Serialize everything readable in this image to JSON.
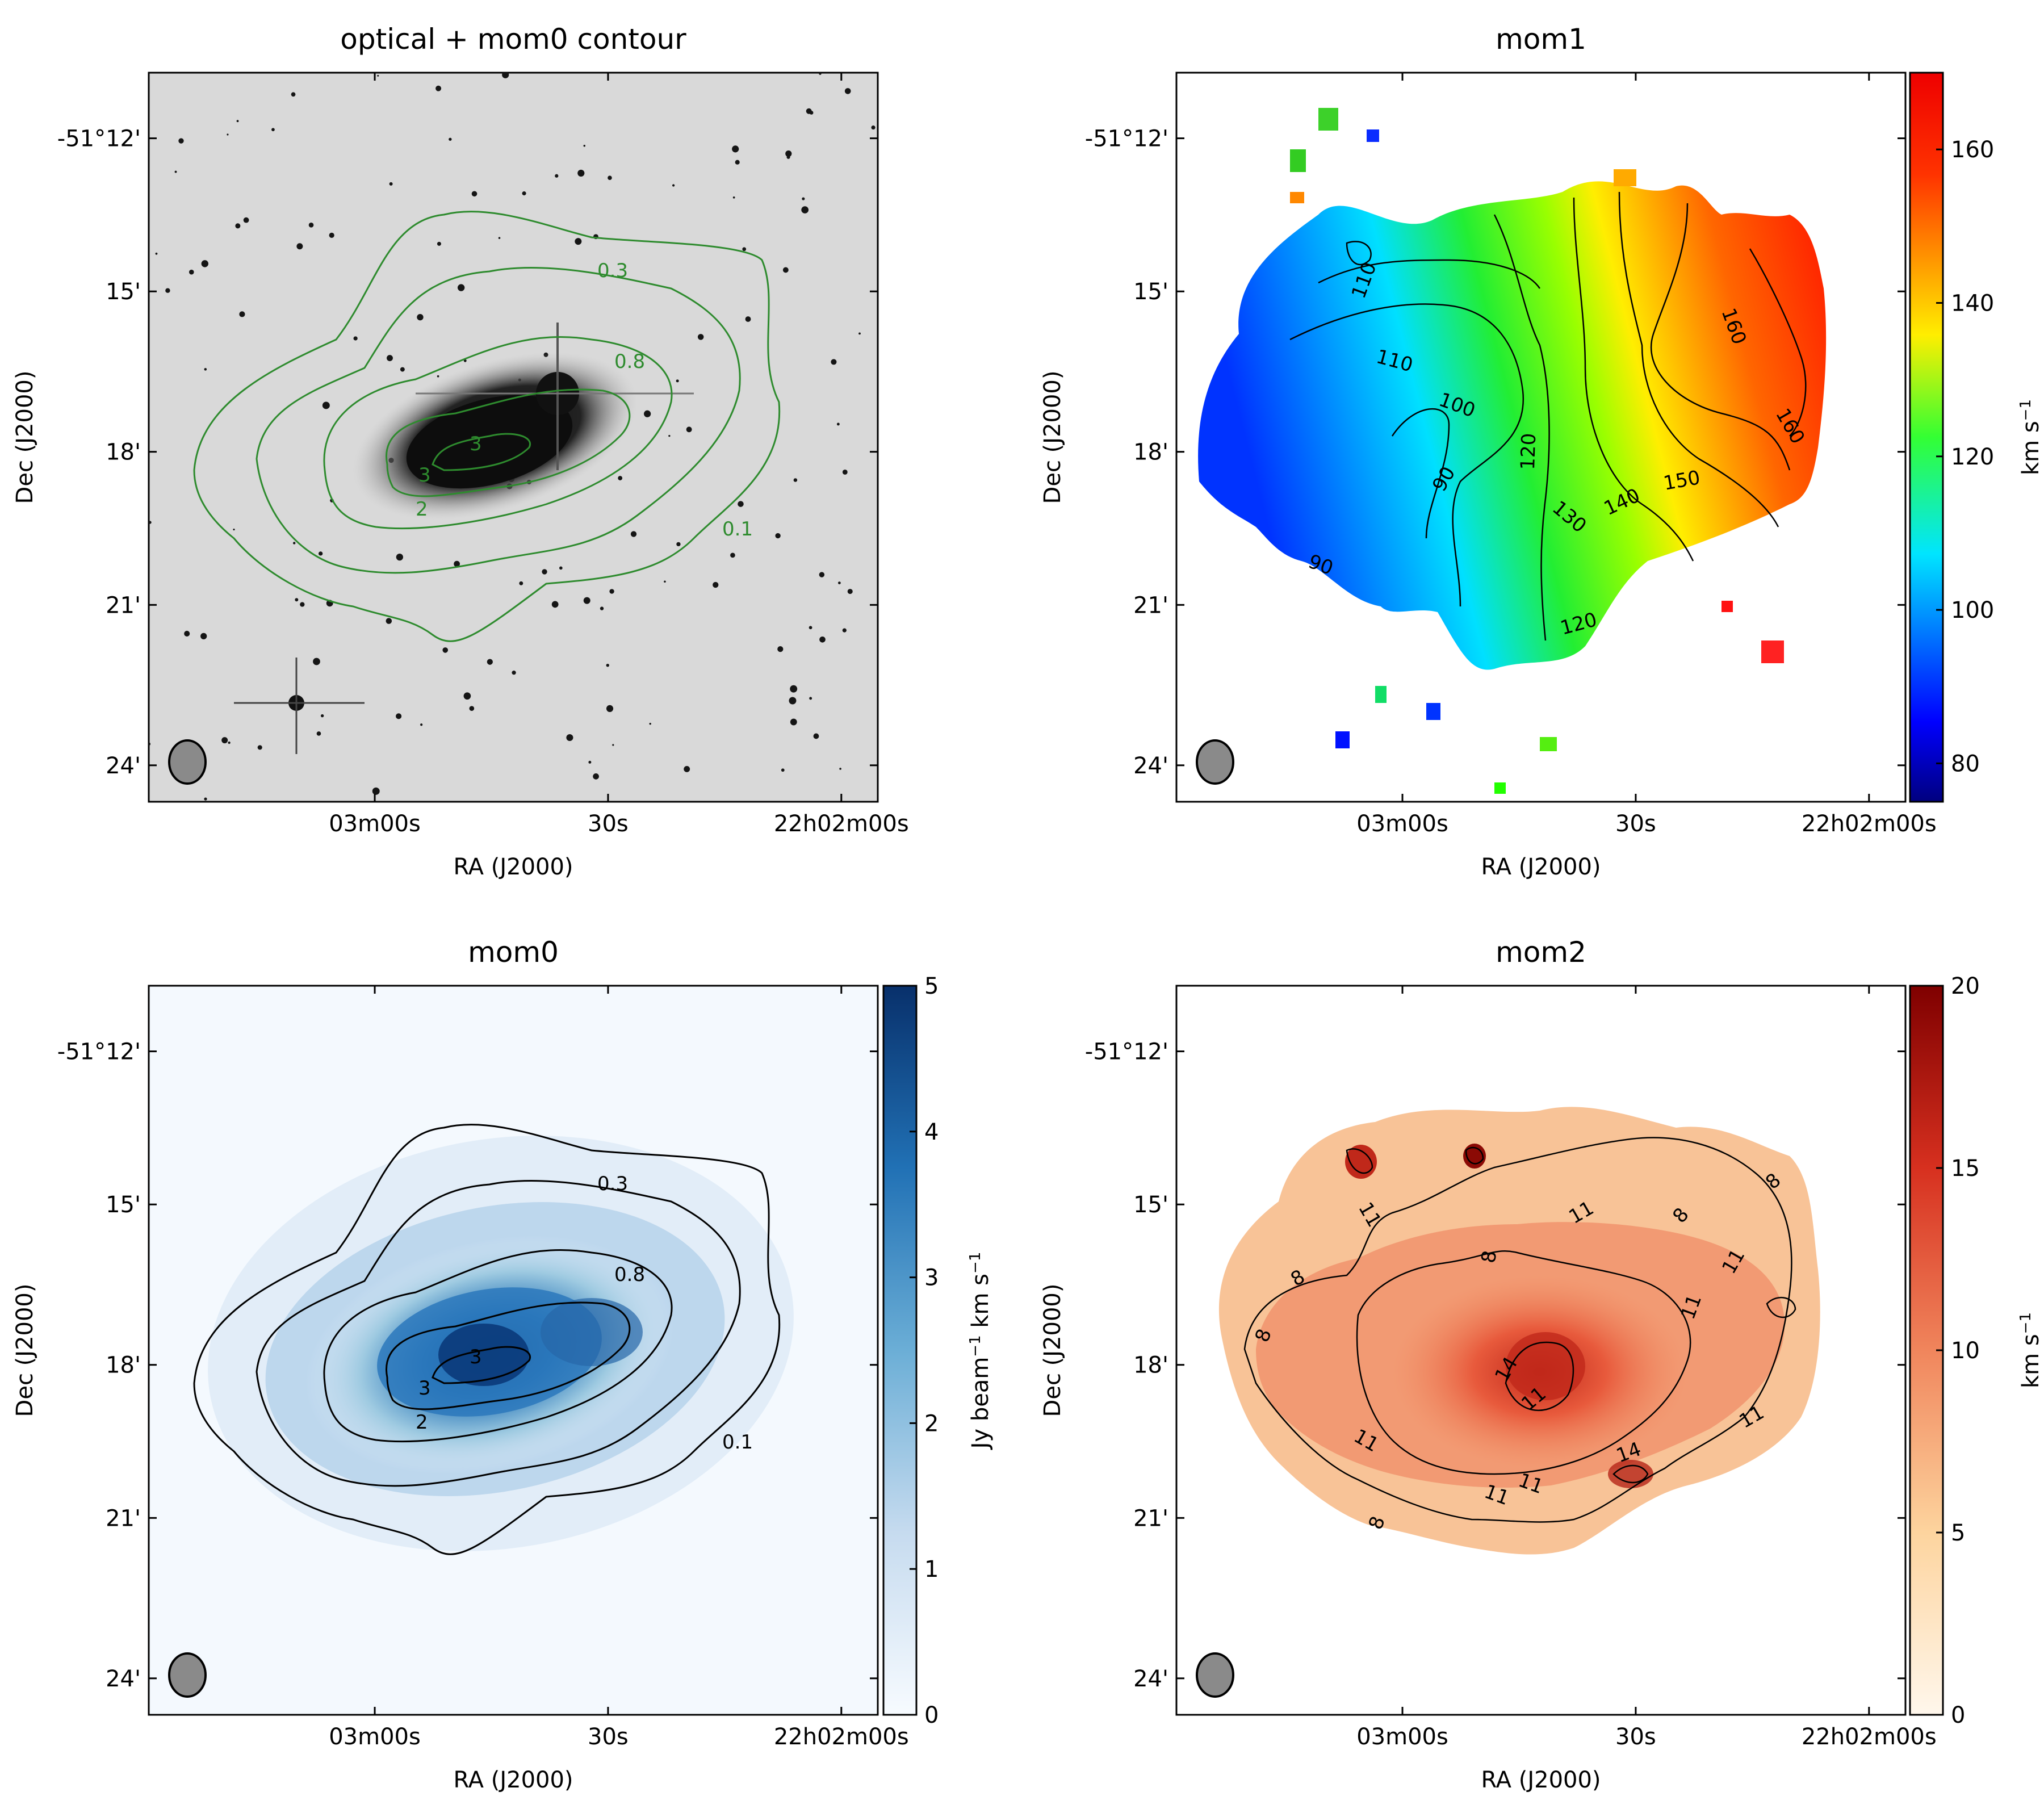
{
  "chart_data": [
    {
      "type": "image",
      "title": "optical + mom0 contour",
      "xlabel": "RA (J2000)",
      "ylabel": "Dec (J2000)",
      "x_ticks": [
        "03m00s",
        "30s",
        "22h02m00s"
      ],
      "y_ticks": [
        "-51°12'",
        "15'",
        "18'",
        "21'",
        "24'"
      ],
      "contour_levels": [
        0.1,
        0.3,
        0.8,
        2,
        3
      ],
      "contour_labels": [
        "0.3",
        "0.8",
        "0.1",
        "2",
        "3",
        "3"
      ],
      "beam": "ellipse",
      "colors": {
        "contour": "#2e8b2e",
        "image": "#d9d9d9"
      }
    },
    {
      "type": "image",
      "title": "mom1",
      "xlabel": "RA (J2000)",
      "ylabel": "Dec (J2000)",
      "x_ticks": [
        "03m00s",
        "30s",
        "22h02m00s"
      ],
      "y_ticks": [
        "-51°12'",
        "15'",
        "18'",
        "21'",
        "24'"
      ],
      "contour_labels": [
        "110",
        "110",
        "100",
        "90",
        "90",
        "120",
        "130",
        "140",
        "150",
        "160",
        "160",
        "120"
      ],
      "colorbar": {
        "label": "km s",
        "label_sup": "−1",
        "ticks": [
          80,
          100,
          120,
          140,
          160
        ],
        "range": [
          75,
          170
        ],
        "colormap": "jet"
      }
    },
    {
      "type": "image",
      "title": "mom0",
      "xlabel": "RA (J2000)",
      "ylabel": "Dec (J2000)",
      "x_ticks": [
        "03m00s",
        "30s",
        "22h02m00s"
      ],
      "y_ticks": [
        "-51°12'",
        "15'",
        "18'",
        "21'",
        "24'"
      ],
      "contour_labels": [
        "0.3",
        "0.8",
        "0.1",
        "2",
        "3",
        "3"
      ],
      "colorbar": {
        "label": "Jy beam",
        "label_sup": "−1",
        "label_tail": " km s",
        "label_sup2": "−1",
        "ticks": [
          0,
          1,
          2,
          3,
          4,
          5
        ],
        "range": [
          0,
          5
        ],
        "colormap": "Blues"
      }
    },
    {
      "type": "image",
      "title": "mom2",
      "xlabel": "RA (J2000)",
      "ylabel": "Dec (J2000)",
      "x_ticks": [
        "03m00s",
        "30s",
        "22h02m00s"
      ],
      "y_ticks": [
        "-51°12'",
        "15'",
        "18'",
        "21'",
        "24'"
      ],
      "contour_labels": [
        "8",
        "8",
        "8",
        "11",
        "11",
        "11",
        "11",
        "14",
        "11",
        "11",
        "11",
        "14",
        "11",
        "8",
        "8",
        "8",
        "11"
      ],
      "colorbar": {
        "label": "km s",
        "label_sup": "−1",
        "ticks": [
          0,
          5,
          10,
          15,
          20
        ],
        "range": [
          0,
          20
        ],
        "colormap": "OrRd"
      }
    }
  ]
}
